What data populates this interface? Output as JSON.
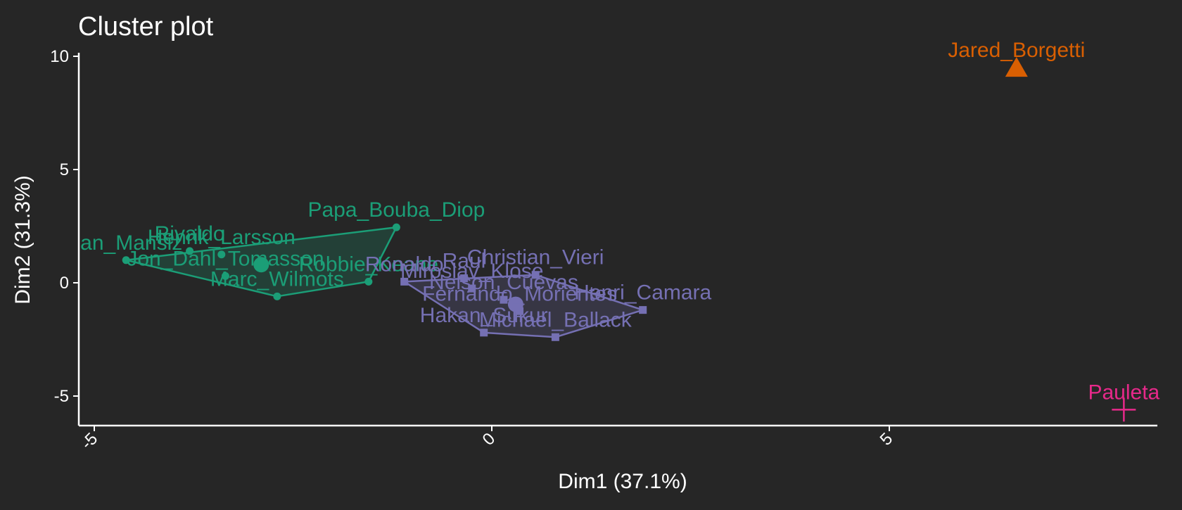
{
  "chart_data": {
    "type": "scatter",
    "title": "Cluster plot",
    "xlabel": "Dim1 (37.1%)",
    "ylabel": "Dim2 (31.3%)",
    "xlim": [
      -5.2,
      8.3
    ],
    "ylim": [
      -6.3,
      10.3
    ],
    "x_ticks": [
      -5,
      0,
      5
    ],
    "y_ticks": [
      -5,
      0,
      5,
      10
    ],
    "x_tick_labels": [
      "-5",
      "0",
      "5"
    ],
    "y_tick_labels": [
      "-5",
      "0",
      "5",
      "10"
    ],
    "grid": false,
    "legend": "none",
    "clusters": [
      {
        "id": "1",
        "color": "#1b9e77",
        "marker": "circle",
        "center": [
          -2.9,
          0.8
        ],
        "hull": [
          [
            -4.6,
            1.0
          ],
          [
            -1.2,
            2.45
          ],
          [
            -1.55,
            0.05
          ],
          [
            -2.7,
            -0.6
          ]
        ],
        "points": [
          {
            "label": "Papa_Bouba_Diop",
            "x": -1.2,
            "y": 2.45
          },
          {
            "label": "Rivaldo",
            "x": -3.8,
            "y": 1.4
          },
          {
            "label": "Jan_Mansiz",
            "x": -4.6,
            "y": 1.0
          },
          {
            "label": "Henrik_Larsson",
            "x": -3.4,
            "y": 1.25
          },
          {
            "label": "Jon_Dahl_Tomasson",
            "x": -3.35,
            "y": 0.3
          },
          {
            "label": "Marc_Wilmots",
            "x": -2.7,
            "y": -0.6
          },
          {
            "label": "Robbie_Keane",
            "x": -1.55,
            "y": 0.05
          }
        ]
      },
      {
        "id": "2",
        "color": "#7570b3",
        "marker": "square",
        "center": [
          0.3,
          -0.95
        ],
        "hull": [
          [
            -1.1,
            0.05
          ],
          [
            0.55,
            0.35
          ],
          [
            1.9,
            -1.2
          ],
          [
            0.8,
            -2.4
          ],
          [
            -0.1,
            -2.2
          ]
        ],
        "points": [
          {
            "label": "Christian_Vieri",
            "x": 0.55,
            "y": 0.35
          },
          {
            "label": "Raul",
            "x": -0.35,
            "y": 0.2
          },
          {
            "label": "Ronaldo",
            "x": -1.1,
            "y": 0.05
          },
          {
            "label": "Henri_Camara",
            "x": 1.9,
            "y": -1.2
          },
          {
            "label": "Miroslav_Klose",
            "x": -0.25,
            "y": -0.25
          },
          {
            "label": "Nelson_Cuevas",
            "x": 0.15,
            "y": -0.75
          },
          {
            "label": "Fernando_Morientes",
            "x": 0.35,
            "y": -1.25
          },
          {
            "label": "Michael_Ballack",
            "x": 0.8,
            "y": -2.4
          },
          {
            "label": "Hakan_Sukur",
            "x": -0.1,
            "y": -2.2
          }
        ]
      },
      {
        "id": "3",
        "color": "#d95f02",
        "marker": "triangle",
        "points": [
          {
            "label": "Jared_Borgetti",
            "x": 6.6,
            "y": 9.5
          }
        ]
      },
      {
        "id": "4",
        "color": "#e7298a",
        "marker": "cross",
        "points": [
          {
            "label": "Pauleta",
            "x": 7.95,
            "y": -5.6
          }
        ]
      }
    ]
  }
}
